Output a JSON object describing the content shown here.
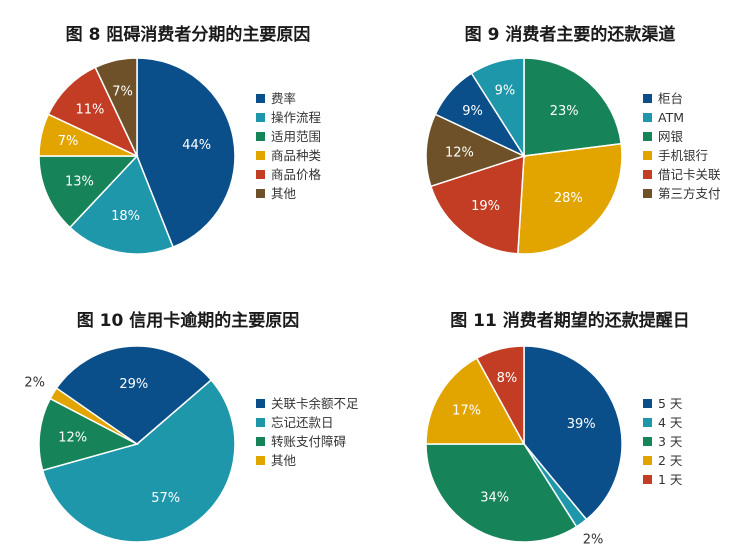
{
  "chart_data": [
    {
      "type": "pie",
      "title": "图 8  阻碍消费者分期的主要原因",
      "slices": [
        {
          "label": "费率",
          "value": 44,
          "color": "#0a4f8a"
        },
        {
          "label": "操作流程",
          "value": 18,
          "color": "#1f97ab"
        },
        {
          "label": "适用范围",
          "value": 13,
          "color": "#168458"
        },
        {
          "label": "商品种类",
          "value": 7,
          "color": "#e2a500"
        },
        {
          "label": "商品价格",
          "value": 11,
          "color": "#c23d24"
        },
        {
          "label": "其他",
          "value": 7,
          "color": "#6e5128"
        }
      ],
      "data_labels": [
        "44%",
        "18%",
        "13%",
        "7%",
        "11%",
        "7%"
      ],
      "legend_placement": "right"
    },
    {
      "type": "pie",
      "title": "图 9  消费者主要的还款渠道",
      "slices": [
        {
          "label": "网银",
          "value": 23,
          "color": "#168458"
        },
        {
          "label": "手机银行",
          "value": 28,
          "color": "#e2a500"
        },
        {
          "label": "借记卡关联",
          "value": 19,
          "color": "#c23d24"
        },
        {
          "label": "第三方支付",
          "value": 12,
          "color": "#6e5128"
        },
        {
          "label": "柜台",
          "value": 9,
          "color": "#0a4f8a"
        },
        {
          "label": "ATM",
          "value": 9,
          "color": "#1f97ab"
        }
      ],
      "data_labels": [
        "23%",
        "28%",
        "19%",
        "12%",
        "9%",
        "9%"
      ],
      "legend_order": [
        "柜台",
        "ATM",
        "网银",
        "手机银行",
        "借记卡关联",
        "第三方支付"
      ],
      "legend_colors": [
        "#0a4f8a",
        "#1f97ab",
        "#168458",
        "#e2a500",
        "#c23d24",
        "#6e5128"
      ],
      "legend_placement": "right"
    },
    {
      "type": "pie",
      "title": "图 10  信用卡逾期的主要原因",
      "slices": [
        {
          "label": "忘记还款日",
          "value": 57,
          "color": "#1f97ab"
        },
        {
          "label": "转账支付障碍",
          "value": 12,
          "color": "#168458"
        },
        {
          "label": "其他",
          "value": 2,
          "color": "#e2a500"
        },
        {
          "label": "关联卡余额不足",
          "value": 29,
          "color": "#0a4f8a"
        }
      ],
      "data_labels": [
        "57%",
        "12%",
        "2%",
        "29%"
      ],
      "legend_order": [
        "关联卡余额不足",
        "忘记还款日",
        "转账支付障碍",
        "其他"
      ],
      "legend_colors": [
        "#0a4f8a",
        "#1f97ab",
        "#168458",
        "#e2a500"
      ],
      "legend_placement": "right"
    },
    {
      "type": "pie",
      "title": "图 11  消费者期望的还款提醒日",
      "slices": [
        {
          "label": "5 天",
          "value": 39,
          "color": "#0a4f8a"
        },
        {
          "label": "4 天",
          "value": 2,
          "color": "#1f97ab"
        },
        {
          "label": "3 天",
          "value": 34,
          "color": "#168458"
        },
        {
          "label": "2 天",
          "value": 17,
          "color": "#e2a500"
        },
        {
          "label": "1 天",
          "value": 8,
          "color": "#c23d24"
        }
      ],
      "data_labels": [
        "39%",
        "2%",
        "34%",
        "17%",
        "8%"
      ],
      "legend_placement": "right"
    }
  ]
}
